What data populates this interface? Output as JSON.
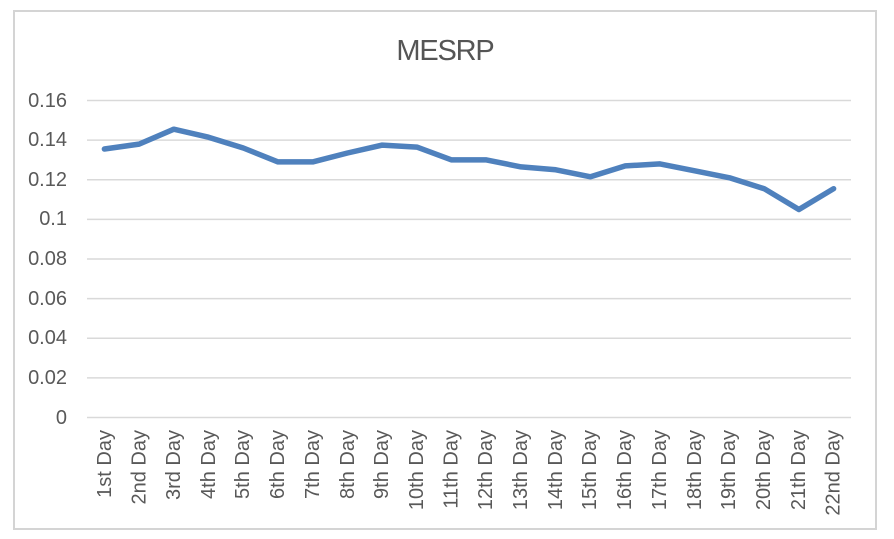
{
  "chart": {
    "colors": {
      "line": "#4f81bd",
      "gridline": "#d9d9d9",
      "axis_line": "#d9d9d9",
      "border": "#d4d4d4",
      "tick_text": "#595959",
      "title_text": "#555555",
      "background": "#ffffff"
    }
  },
  "chart_data": {
    "type": "line",
    "title": "MESRP",
    "categories": [
      "1st Day",
      "2nd Day",
      "3rd Day",
      "4th Day",
      "5th Day",
      "6th Day",
      "7th Day",
      "8th Day",
      "9th Day",
      "10th Day",
      "11th Day",
      "12th Day",
      "13th Day",
      "14th Day",
      "15th Day",
      "16th Day",
      "17th Day",
      "18th Day",
      "19th Day",
      "20th Day",
      "21th Day",
      "22nd Day"
    ],
    "values": [
      0.1355,
      0.138,
      0.1455,
      0.1415,
      0.136,
      0.129,
      0.129,
      0.1335,
      0.1375,
      0.1365,
      0.13,
      0.13,
      0.1265,
      0.125,
      0.1215,
      0.127,
      0.128,
      0.1245,
      0.121,
      0.1155,
      0.105,
      0.1155
    ],
    "xlabel": "",
    "ylabel": "",
    "ylim": [
      0,
      0.16
    ],
    "ytick_step": 0.02,
    "ytick_labels": [
      "0",
      "0.02",
      "0.04",
      "0.06",
      "0.08",
      "0.1",
      "0.12",
      "0.14",
      "0.16"
    ],
    "grid": true,
    "legend": false,
    "series_name": "MESRP"
  }
}
